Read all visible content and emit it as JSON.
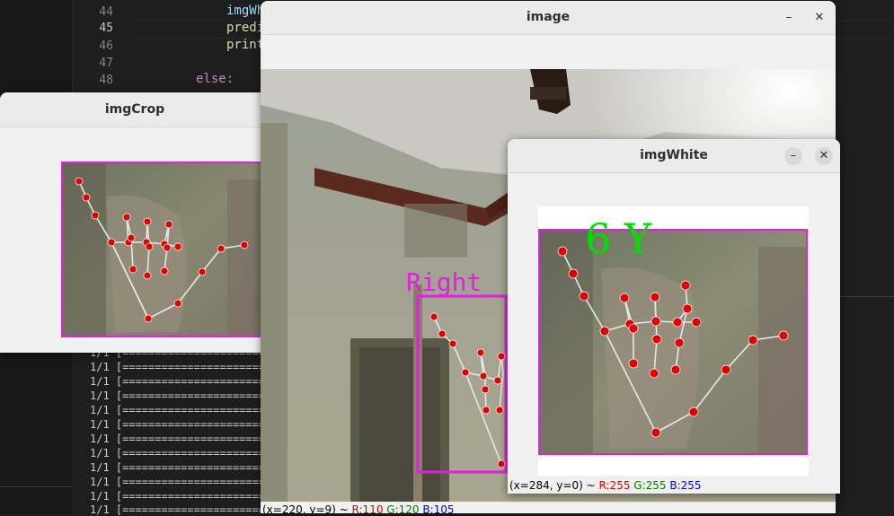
{
  "editor": {
    "line_numbers": [
      "44",
      "45",
      "46",
      "47",
      "48"
    ],
    "code_lines": [
      "imgWh",
      "predi",
      "print",
      "",
      "else:"
    ],
    "terminal_lines": [
      "1/1 [==========================",
      "1/1 [==========================",
      "1/1 [==========================",
      "1/1 [==========================",
      "1/1 [==========================",
      "1/1 [==========================",
      "1/1 [==========================",
      "1/1 [==========================",
      "1/1 [==========================",
      "1/1 [==========================",
      "1/1 [==========================",
      "1/1 [=========================="
    ]
  },
  "windows": {
    "imgcrop": {
      "title": "imgCrop"
    },
    "image": {
      "title": "image",
      "hand_label": "Right",
      "status": {
        "coords": "(x=220, y=9) ~",
        "r": "R:110",
        "g": "G:120",
        "b": "B:105"
      },
      "minimize": "–",
      "close": "✕"
    },
    "imgwhite": {
      "title": "imgWhite",
      "prediction": "6 Y",
      "status": {
        "coords": "(x=284, y=0) ~",
        "r": "R:255",
        "g": "G:255",
        "b": "B:255"
      },
      "minimize": "–",
      "close": "✕"
    }
  },
  "colors": {
    "box": "#e01fe0",
    "landmark": "#e00000",
    "skeleton": "#e8e8e8",
    "prediction": "#00e000"
  }
}
